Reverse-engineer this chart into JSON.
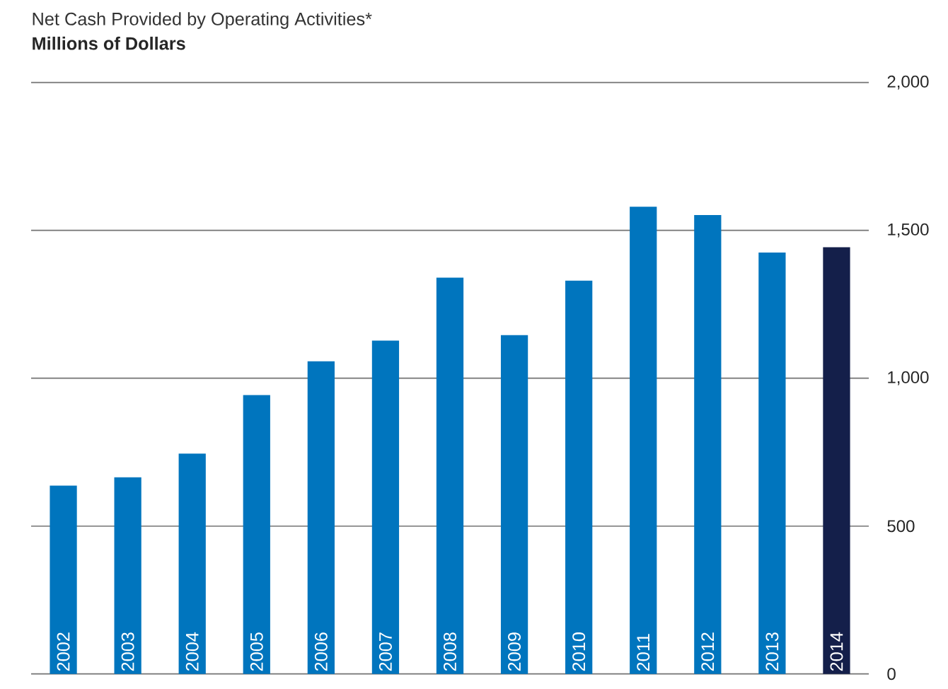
{
  "chart_data": {
    "type": "bar",
    "title": "Net Cash Provided by Operating Activities*",
    "subtitle": "Millions of Dollars",
    "categories": [
      "2002",
      "2003",
      "2004",
      "2005",
      "2006",
      "2007",
      "2008",
      "2009",
      "2010",
      "2011",
      "2012",
      "2013",
      "2014"
    ],
    "values": [
      637,
      665,
      745,
      943,
      1057,
      1127,
      1340,
      1146,
      1330,
      1580,
      1552,
      1425,
      1443
    ],
    "colors": [
      "#0075be",
      "#0075be",
      "#0075be",
      "#0075be",
      "#0075be",
      "#0075be",
      "#0075be",
      "#0075be",
      "#0075be",
      "#0075be",
      "#0075be",
      "#0075be",
      "#141f4a"
    ],
    "ylim": [
      0,
      2000
    ],
    "yticks": [
      0,
      {
        "value": 500,
        "label": "500"
      },
      {
        "value": 1000,
        "label": "1,000"
      },
      {
        "value": 1500,
        "label": "1,500"
      },
      {
        "value": 2000,
        "label": "2,000"
      }
    ],
    "grid": "y"
  }
}
